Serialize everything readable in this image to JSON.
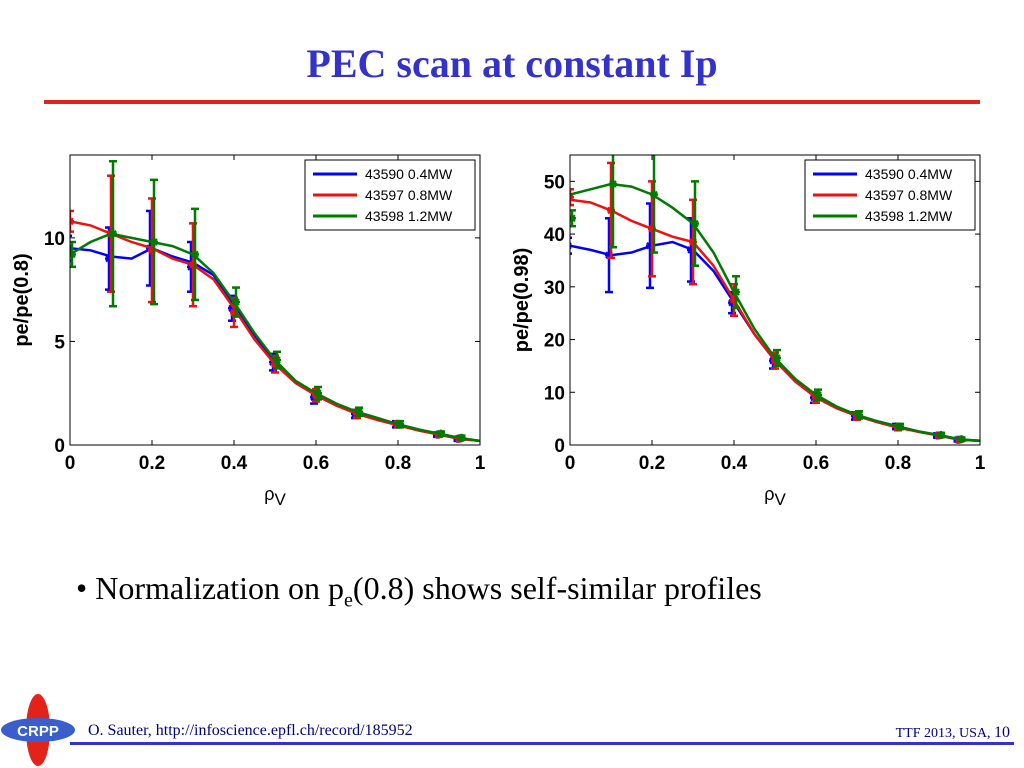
{
  "slide": {
    "title": "PEC scan at constant Ip",
    "bullet": {
      "marker": "•",
      "prefix": "Normalization on p",
      "subscript": "e",
      "suffix": "(0.8) shows self-similar profiles"
    },
    "footer_left": "O. Sauter, http://infoscience.epfl.ch/record/185952",
    "footer_right": "TTF 2013, USA,",
    "page_number": "10",
    "logo_text": "CRPP",
    "colors": {
      "title": "#3333cc",
      "rule": "#e32219",
      "footer": "#000080"
    }
  },
  "chart_data": [
    {
      "type": "line",
      "ylabel": "pe/pe(0.8)",
      "xlabel_main": "ρ",
      "xlabel_sub": "V",
      "xlim": [
        0,
        1
      ],
      "ylim": [
        0,
        14
      ],
      "xticks": [
        0,
        0.2,
        0.4,
        0.6,
        0.8,
        1
      ],
      "xtick_labels": [
        "0",
        "0.2",
        "0.4",
        "0.6",
        "0.8",
        "1"
      ],
      "yticks": [
        0,
        5,
        10
      ],
      "ytick_labels": [
        "0",
        "5",
        "10"
      ],
      "legend_position": "top-right",
      "series": [
        {
          "name": "43590 0.4MW",
          "color": "#0000ff",
          "fit_x": [
            0,
            0.05,
            0.1,
            0.15,
            0.2,
            0.25,
            0.3,
            0.35,
            0.4,
            0.45,
            0.5,
            0.55,
            0.6,
            0.65,
            0.7,
            0.75,
            0.8,
            0.85,
            0.9,
            0.95,
            1.0
          ],
          "fit_y": [
            9.5,
            9.4,
            9.1,
            9.0,
            9.5,
            9.1,
            8.8,
            8.2,
            6.8,
            5.3,
            4.0,
            3.0,
            2.4,
            1.9,
            1.6,
            1.3,
            1.0,
            0.75,
            0.5,
            0.3,
            0.2
          ],
          "points_x": [
            0.0,
            0.1,
            0.2,
            0.3,
            0.4,
            0.5,
            0.6,
            0.7,
            0.8,
            0.9,
            0.95
          ],
          "points_y": [
            9.5,
            9.0,
            9.5,
            8.6,
            6.6,
            4.0,
            2.3,
            1.5,
            1.0,
            0.5,
            0.3
          ],
          "err": [
            0.6,
            1.5,
            1.8,
            1.2,
            0.6,
            0.4,
            0.3,
            0.2,
            0.15,
            0.1,
            0.1
          ]
        },
        {
          "name": "43597 0.8MW",
          "color": "#ee1111",
          "fit_x": [
            0,
            0.05,
            0.1,
            0.15,
            0.2,
            0.25,
            0.3,
            0.35,
            0.4,
            0.45,
            0.5,
            0.55,
            0.6,
            0.65,
            0.7,
            0.75,
            0.8,
            0.85,
            0.9,
            0.95,
            1.0
          ],
          "fit_y": [
            10.8,
            10.6,
            10.2,
            9.8,
            9.5,
            9.0,
            8.7,
            8.0,
            6.6,
            5.1,
            3.9,
            3.0,
            2.4,
            1.9,
            1.5,
            1.2,
            0.95,
            0.7,
            0.5,
            0.3,
            0.2
          ],
          "points_x": [
            0.0,
            0.1,
            0.2,
            0.3,
            0.4,
            0.5,
            0.6,
            0.7,
            0.8,
            0.9,
            0.95
          ],
          "points_y": [
            10.8,
            10.2,
            9.4,
            8.7,
            6.4,
            3.9,
            2.4,
            1.5,
            1.0,
            0.5,
            0.3
          ],
          "err": [
            0.5,
            2.8,
            2.5,
            2.0,
            0.7,
            0.4,
            0.3,
            0.2,
            0.15,
            0.1,
            0.1
          ]
        },
        {
          "name": "43598 1.2MW",
          "color": "#007a00",
          "fit_x": [
            0,
            0.05,
            0.1,
            0.15,
            0.2,
            0.25,
            0.3,
            0.35,
            0.4,
            0.45,
            0.5,
            0.55,
            0.6,
            0.65,
            0.7,
            0.75,
            0.8,
            0.85,
            0.9,
            0.95,
            1.0
          ],
          "fit_y": [
            9.2,
            9.8,
            10.2,
            10.0,
            9.8,
            9.6,
            9.2,
            8.3,
            6.9,
            5.4,
            4.1,
            3.1,
            2.5,
            2.0,
            1.6,
            1.3,
            1.0,
            0.75,
            0.55,
            0.35,
            0.2
          ],
          "points_x": [
            0.0,
            0.1,
            0.2,
            0.3,
            0.4,
            0.5,
            0.6,
            0.7,
            0.8,
            0.9,
            0.95
          ],
          "points_y": [
            9.2,
            10.2,
            9.8,
            9.2,
            6.9,
            4.1,
            2.5,
            1.6,
            1.0,
            0.55,
            0.35
          ],
          "err": [
            0.6,
            3.5,
            3.0,
            2.2,
            0.7,
            0.4,
            0.3,
            0.2,
            0.15,
            0.1,
            0.1
          ]
        }
      ]
    },
    {
      "type": "line",
      "ylabel": "pe/pe(0.98)",
      "xlabel_main": "ρ",
      "xlabel_sub": "V",
      "xlim": [
        0,
        1
      ],
      "ylim": [
        0,
        55
      ],
      "xticks": [
        0,
        0.2,
        0.4,
        0.6,
        0.8,
        1
      ],
      "xtick_labels": [
        "0",
        "0.2",
        "0.4",
        "0.6",
        "0.8",
        "1"
      ],
      "yticks": [
        0,
        10,
        20,
        30,
        40,
        50
      ],
      "ytick_labels": [
        "0",
        "10",
        "20",
        "30",
        "40",
        "50"
      ],
      "legend_position": "top-right",
      "series": [
        {
          "name": "43590 0.4MW",
          "color": "#0000ff",
          "fit_x": [
            0,
            0.05,
            0.1,
            0.15,
            0.2,
            0.25,
            0.3,
            0.35,
            0.4,
            0.45,
            0.5,
            0.55,
            0.6,
            0.65,
            0.7,
            0.75,
            0.8,
            0.85,
            0.9,
            0.95,
            1.0
          ],
          "fit_y": [
            37.8,
            37.0,
            36.0,
            36.5,
            37.8,
            38.5,
            37.0,
            33.0,
            27.0,
            21.0,
            16.0,
            12.0,
            9.0,
            7.0,
            5.5,
            4.5,
            3.5,
            2.5,
            1.8,
            1.0,
            0.8
          ],
          "points_x": [
            0.0,
            0.1,
            0.2,
            0.3,
            0.4,
            0.5,
            0.6,
            0.7,
            0.8,
            0.9,
            0.95
          ],
          "points_y": [
            37.8,
            36.0,
            37.8,
            37.0,
            27.0,
            16.0,
            9.0,
            5.5,
            3.5,
            1.8,
            1.0
          ],
          "err": [
            1.5,
            7.0,
            8.0,
            6.0,
            2.0,
            1.5,
            1.0,
            0.7,
            0.5,
            0.4,
            0.3
          ]
        },
        {
          "name": "43597 0.8MW",
          "color": "#ee1111",
          "fit_x": [
            0,
            0.05,
            0.1,
            0.15,
            0.2,
            0.25,
            0.3,
            0.35,
            0.4,
            0.45,
            0.5,
            0.55,
            0.6,
            0.65,
            0.7,
            0.75,
            0.8,
            0.85,
            0.9,
            0.95,
            1.0
          ],
          "fit_y": [
            46.5,
            46.0,
            44.5,
            42.5,
            41.0,
            39.5,
            38.5,
            34.0,
            27.5,
            21.0,
            16.0,
            12.0,
            9.0,
            7.0,
            5.5,
            4.3,
            3.3,
            2.5,
            1.8,
            1.0,
            0.8
          ],
          "points_x": [
            0.0,
            0.1,
            0.2,
            0.3,
            0.4,
            0.5,
            0.6,
            0.7,
            0.8,
            0.9,
            0.95
          ],
          "points_y": [
            47.0,
            44.5,
            41.0,
            38.5,
            27.5,
            16.0,
            9.0,
            5.5,
            3.3,
            1.8,
            1.0
          ],
          "err": [
            1.5,
            9.0,
            9.0,
            8.0,
            3.0,
            1.5,
            1.0,
            0.7,
            0.5,
            0.4,
            0.3
          ]
        },
        {
          "name": "43598 1.2MW",
          "color": "#007a00",
          "fit_x": [
            0,
            0.05,
            0.1,
            0.15,
            0.2,
            0.25,
            0.3,
            0.35,
            0.4,
            0.45,
            0.5,
            0.55,
            0.6,
            0.65,
            0.7,
            0.75,
            0.8,
            0.85,
            0.9,
            0.95,
            1.0
          ],
          "fit_y": [
            47.5,
            48.5,
            49.5,
            49.0,
            47.5,
            45.0,
            42.0,
            36.5,
            29.0,
            22.0,
            16.5,
            12.5,
            9.5,
            7.3,
            5.7,
            4.5,
            3.5,
            2.6,
            1.9,
            1.1,
            0.8
          ],
          "points_x": [
            0.0,
            0.1,
            0.2,
            0.3,
            0.4,
            0.5,
            0.6,
            0.7,
            0.8,
            0.9,
            0.95
          ],
          "points_y": [
            43.0,
            49.5,
            47.5,
            42.0,
            29.0,
            16.5,
            9.5,
            5.7,
            3.5,
            1.9,
            1.1
          ],
          "err": [
            1.5,
            12.0,
            11.0,
            8.0,
            3.0,
            1.5,
            1.0,
            0.7,
            0.5,
            0.4,
            0.3
          ]
        }
      ]
    }
  ]
}
